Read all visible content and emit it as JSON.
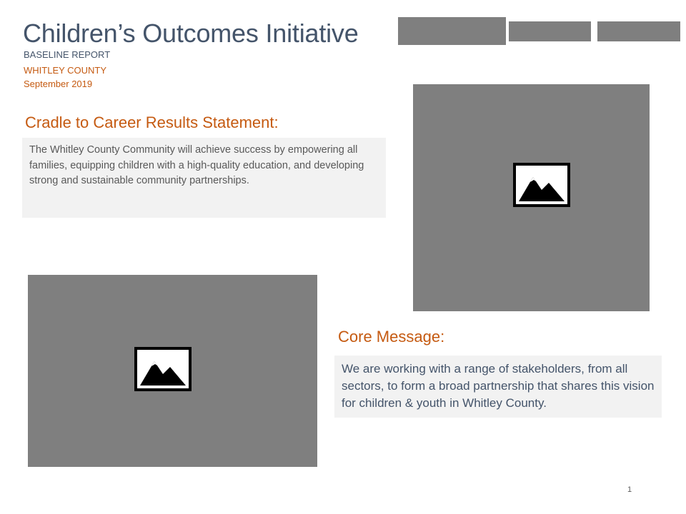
{
  "header": {
    "title": "Children’s Outcomes Initiative",
    "subtitle": "BASELINE REPORT",
    "county": "WHITLEY COUNTY",
    "date": "September 2019"
  },
  "logos": [
    {
      "icon": "logo-placeholder"
    },
    {
      "icon": "logo-placeholder"
    },
    {
      "icon": "logo-placeholder"
    }
  ],
  "results_section": {
    "heading": "Cradle to Career Results Statement:",
    "body": "The Whitley County Community will achieve success by empowering all families, equipping children with a high-quality education, and developing strong and sustainable community partnerships."
  },
  "core_message_section": {
    "heading": "Core Message:",
    "body": "We are working with a range of stakeholders, from all sectors, to form a broad partnership that shares this vision for children & youth in Whitley County."
  },
  "images": [
    {
      "icon": "picture-icon"
    },
    {
      "icon": "picture-icon"
    }
  ],
  "footer": {
    "page_number": "1"
  },
  "colors": {
    "title": "#44546a",
    "accent": "#c55a11",
    "placeholder": "#7f7f7f",
    "text_box_background": "#f2f2f2"
  }
}
